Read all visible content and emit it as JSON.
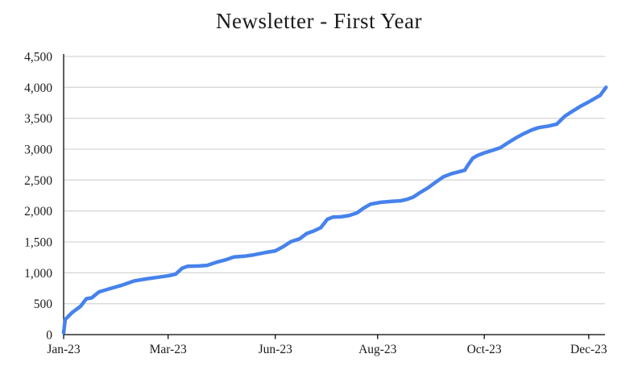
{
  "colors": {
    "line": "#4682ec",
    "gridline": "#d8d8d8",
    "axis": "#000000",
    "text": "#1b1b1b",
    "background": "#ffffff"
  },
  "chart_data": {
    "type": "line",
    "title": "Newsletter - First Year",
    "xlabel": "",
    "ylabel": "",
    "ylim": [
      0,
      4500
    ],
    "y_tick_step": 500,
    "y_tick_values": [
      0,
      500,
      1000,
      1500,
      2000,
      2500,
      3000,
      3500,
      4000,
      4500
    ],
    "y_tick_labels": [
      "0",
      "500",
      "1,000",
      "1,500",
      "2,000",
      "2,500",
      "3,000",
      "3,500",
      "4,000",
      "4,500"
    ],
    "x_ticks": [
      {
        "label": "Jan-23",
        "t": 0.0
      },
      {
        "label": "Mar-23",
        "t": 0.193
      },
      {
        "label": "Jun-23",
        "t": 0.391
      },
      {
        "label": "Aug-23",
        "t": 0.58
      },
      {
        "label": "Oct-23",
        "t": 0.777
      },
      {
        "label": "Dec-23",
        "t": 0.97
      }
    ],
    "grid": "horizontal",
    "legend": "none",
    "point_format": [
      "fraction_of_x_axis_Jan23_to_Dec23",
      "subscribers"
    ],
    "points": [
      [
        0.0,
        30
      ],
      [
        0.003,
        245
      ],
      [
        0.016,
        360
      ],
      [
        0.031,
        455
      ],
      [
        0.042,
        580
      ],
      [
        0.052,
        595
      ],
      [
        0.065,
        690
      ],
      [
        0.086,
        745
      ],
      [
        0.106,
        795
      ],
      [
        0.131,
        870
      ],
      [
        0.155,
        905
      ],
      [
        0.18,
        935
      ],
      [
        0.195,
        955
      ],
      [
        0.207,
        980
      ],
      [
        0.219,
        1075
      ],
      [
        0.229,
        1105
      ],
      [
        0.249,
        1110
      ],
      [
        0.265,
        1120
      ],
      [
        0.284,
        1175
      ],
      [
        0.301,
        1215
      ],
      [
        0.314,
        1255
      ],
      [
        0.333,
        1268
      ],
      [
        0.351,
        1290
      ],
      [
        0.371,
        1325
      ],
      [
        0.391,
        1355
      ],
      [
        0.406,
        1425
      ],
      [
        0.42,
        1505
      ],
      [
        0.436,
        1550
      ],
      [
        0.449,
        1635
      ],
      [
        0.463,
        1680
      ],
      [
        0.475,
        1730
      ],
      [
        0.487,
        1865
      ],
      [
        0.497,
        1900
      ],
      [
        0.512,
        1905
      ],
      [
        0.527,
        1925
      ],
      [
        0.542,
        1970
      ],
      [
        0.554,
        2045
      ],
      [
        0.567,
        2110
      ],
      [
        0.586,
        2140
      ],
      [
        0.606,
        2155
      ],
      [
        0.623,
        2165
      ],
      [
        0.635,
        2190
      ],
      [
        0.646,
        2225
      ],
      [
        0.658,
        2295
      ],
      [
        0.673,
        2375
      ],
      [
        0.688,
        2470
      ],
      [
        0.702,
        2555
      ],
      [
        0.717,
        2605
      ],
      [
        0.733,
        2640
      ],
      [
        0.741,
        2660
      ],
      [
        0.747,
        2745
      ],
      [
        0.756,
        2855
      ],
      [
        0.765,
        2900
      ],
      [
        0.777,
        2940
      ],
      [
        0.792,
        2980
      ],
      [
        0.807,
        3025
      ],
      [
        0.821,
        3105
      ],
      [
        0.836,
        3185
      ],
      [
        0.851,
        3255
      ],
      [
        0.866,
        3315
      ],
      [
        0.878,
        3350
      ],
      [
        0.896,
        3375
      ],
      [
        0.911,
        3405
      ],
      [
        0.926,
        3535
      ],
      [
        0.94,
        3615
      ],
      [
        0.955,
        3695
      ],
      [
        0.97,
        3765
      ],
      [
        0.985,
        3840
      ],
      [
        0.991,
        3870
      ],
      [
        1.002,
        4000
      ]
    ]
  }
}
